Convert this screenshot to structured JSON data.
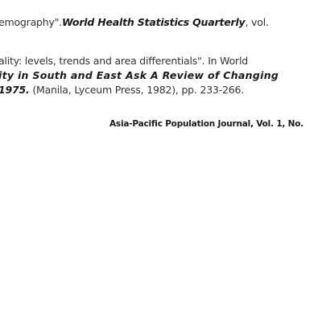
{
  "references": {
    "ref1": {
      "line1_pre": "emography\".",
      "line1_journal": "World Health Statistics Quarterly",
      "line1_post": ", vol."
    },
    "ref2": {
      "line1": "ality: levels, trends and area differentials\". In World",
      "line2": "ity in South and East Ask A Review of Changing",
      "line3_bold": "1975.",
      "line3_rest": " (Manila, Lyceum Press, 1982), pp. 233-266."
    }
  },
  "footer": {
    "journal": "Asia-Pacific Population Journal, Vol. 1, No."
  }
}
